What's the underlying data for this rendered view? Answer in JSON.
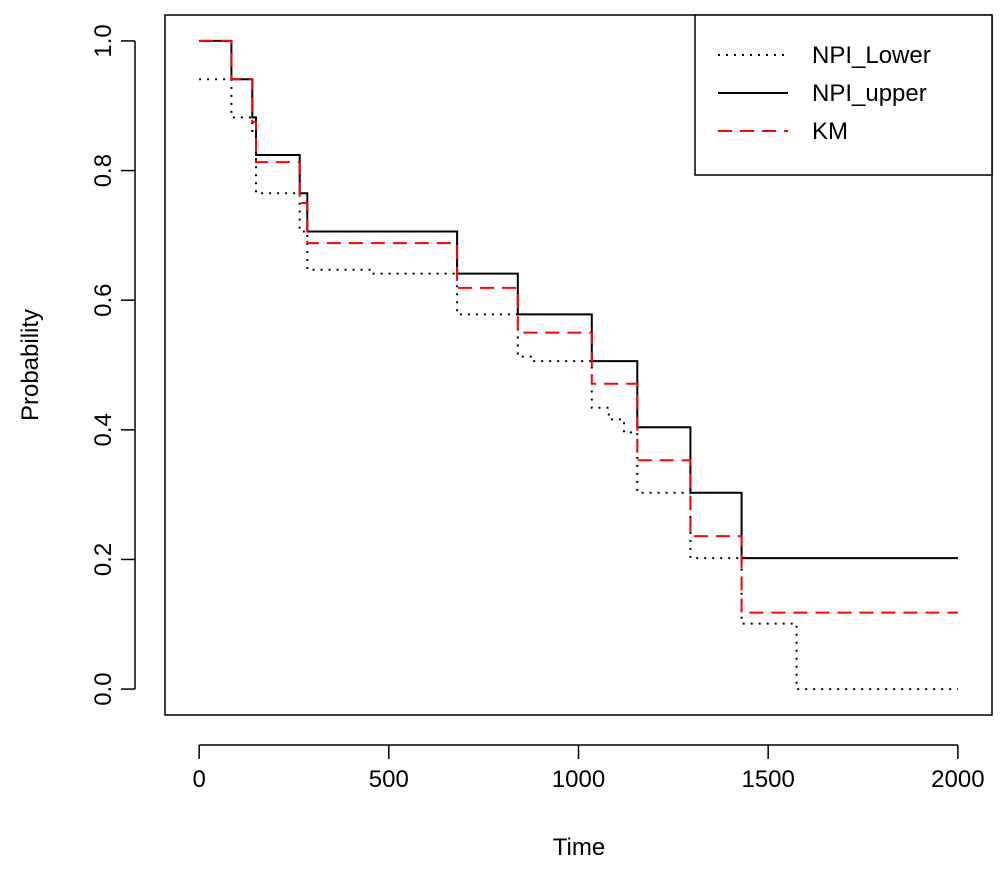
{
  "chart_data": {
    "type": "line",
    "step": true,
    "xlabel": "Time",
    "ylabel": "Probability",
    "xlim": [
      -90,
      2090
    ],
    "ylim": [
      -0.04,
      1.04
    ],
    "xticks": [
      0,
      500,
      1000,
      1500,
      2000
    ],
    "yticks": [
      0.0,
      0.2,
      0.4,
      0.6,
      0.8,
      1.0
    ],
    "xtick_labels": [
      "0",
      "500",
      "1000",
      "1500",
      "2000"
    ],
    "ytick_labels": [
      "0.0",
      "0.2",
      "0.4",
      "0.6",
      "0.8",
      "1.0"
    ],
    "grid": false,
    "legend_position": "top-right",
    "series": [
      {
        "name": "NPI_Lower",
        "line_style": "dotted",
        "color": "#000000",
        "x": [
          0,
          85,
          140,
          150,
          265,
          285,
          460,
          680,
          840,
          880,
          1035,
          1080,
          1120,
          1155,
          1295,
          1430,
          1575,
          2000
        ],
        "y": [
          0.941,
          0.882,
          0.857,
          0.765,
          0.706,
          0.647,
          0.641,
          0.578,
          0.513,
          0.506,
          0.434,
          0.416,
          0.396,
          0.303,
          0.202,
          0.101,
          0.0,
          0.0
        ]
      },
      {
        "name": "NPI_upper",
        "line_style": "solid",
        "color": "#000000",
        "x": [
          0,
          85,
          140,
          150,
          265,
          285,
          680,
          840,
          1035,
          1155,
          1295,
          1430,
          2000
        ],
        "y": [
          1.0,
          0.941,
          0.882,
          0.824,
          0.765,
          0.706,
          0.641,
          0.578,
          0.506,
          0.404,
          0.303,
          0.202,
          0.202
        ]
      },
      {
        "name": "KM",
        "line_style": "dashed",
        "color": "#ff0000",
        "x": [
          0,
          85,
          140,
          150,
          265,
          285,
          680,
          840,
          1035,
          1155,
          1295,
          1430,
          2000
        ],
        "y": [
          1.0,
          0.941,
          0.875,
          0.813,
          0.75,
          0.688,
          0.619,
          0.55,
          0.471,
          0.353,
          0.236,
          0.118,
          0.118
        ]
      }
    ]
  }
}
